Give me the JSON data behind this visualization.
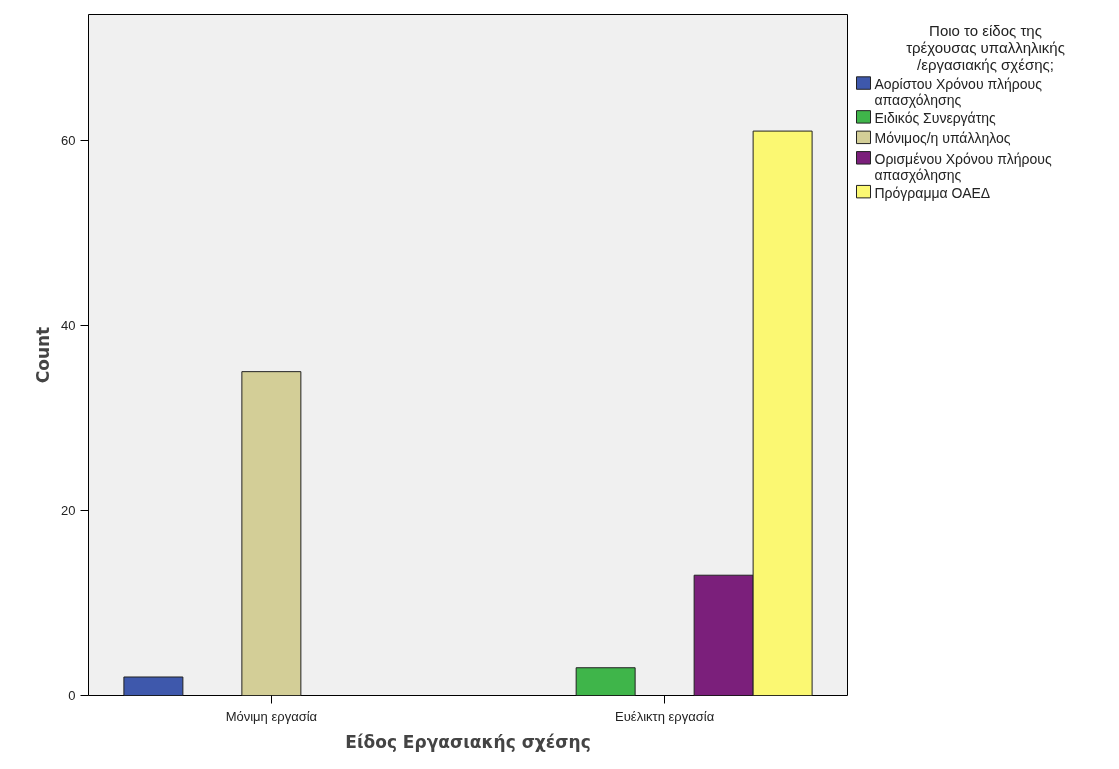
{
  "chart_data": {
    "type": "bar",
    "xlabel": "Είδος Εργασιακής σχέσης",
    "ylabel": "Count",
    "legend_title": "Ποιο το είδος της τρέχουσας υπαλληλικής /εργασιακής σχέσης;",
    "categories": [
      "Μόνιμη εργασία",
      "Ευέλικτη εργασία"
    ],
    "series": [
      {
        "name": "Αορίστου Χρόνου πλήρους απασχόλησης",
        "color": "#3e58ac",
        "values": [
          2,
          null
        ]
      },
      {
        "name": "Ειδικός Συνεργάτης",
        "color": "#3fb54a",
        "values": [
          null,
          3
        ]
      },
      {
        "name": "Μόνιμος/η υπάλληλος",
        "color": "#d3ce97",
        "values": [
          35,
          null
        ]
      },
      {
        "name": "Ορισμένου Χρόνου πλήρους απασχόλησης",
        "color": "#7b1f7b",
        "values": [
          null,
          13
        ]
      },
      {
        "name": "Πρόγραμμα ΟΑΕΔ",
        "color": "#fbf872",
        "values": [
          null,
          61
        ]
      }
    ],
    "ylim": [
      0,
      73.6
    ],
    "yticks": [
      0,
      20,
      40,
      60
    ],
    "grid": false,
    "legend": "right"
  }
}
